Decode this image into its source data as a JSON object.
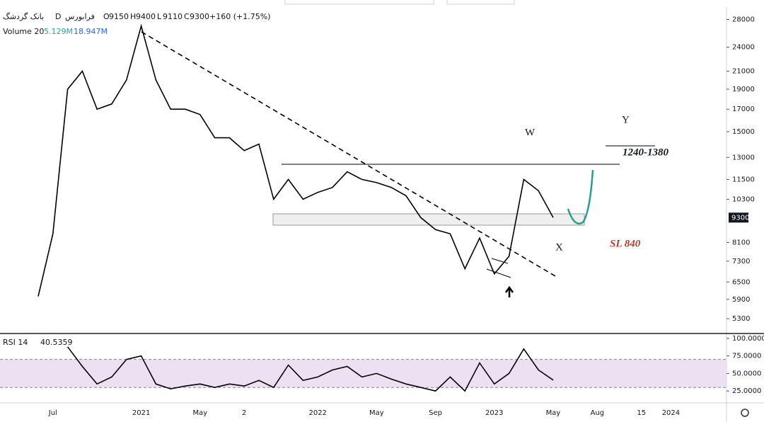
{
  "header": {
    "symbol": "بانک گردشگ",
    "interval": "D",
    "exchange": "فرابورس",
    "ohlc": [
      {
        "label": "O",
        "value": 9150
      },
      {
        "label": "H",
        "value": 9400
      },
      {
        "label": "L",
        "value": 9110
      },
      {
        "label": "C",
        "value": 9300
      }
    ],
    "change": "+160 (+1.75%)",
    "volume_title": "Volume 20",
    "volume_value": "5.129M",
    "volume_ma": "18.947M"
  },
  "chart_data": [
    {
      "type": "line",
      "log_scale": true,
      "color": "#000000",
      "categories": [
        null,
        "Jul",
        null,
        null,
        null,
        null,
        null,
        "2021",
        null,
        null,
        null,
        "May",
        null,
        null,
        "2",
        null,
        null,
        null,
        null,
        "2022",
        null,
        null,
        null,
        "May",
        null,
        null,
        null,
        "Sep",
        null,
        null,
        null,
        "2023",
        null,
        null,
        null,
        "May",
        null,
        null,
        "Aug",
        null,
        null,
        "15",
        null,
        "2024"
      ],
      "values": [
        6000,
        8500,
        19000,
        21000,
        17000,
        17500,
        20000,
        27000,
        20000,
        17000,
        17000,
        16500,
        14500,
        14500,
        13500,
        14000,
        10300,
        11500,
        10300,
        10700,
        11000,
        12000,
        11500,
        11300,
        11000,
        10500,
        9300,
        8700,
        8500,
        7000,
        8300,
        6800,
        7500,
        11500,
        10800,
        9300,
        null,
        null,
        null,
        null,
        null,
        null,
        null,
        null
      ],
      "ylim": [
        4900,
        30000
      ],
      "yticks": [
        28000,
        24000,
        21000,
        19000,
        17000,
        15000,
        13000,
        11500,
        10300,
        8100,
        7300,
        6500,
        5900,
        5300
      ],
      "last_price": 9300,
      "annotations": [
        "W",
        "Y",
        "X",
        "1240-1380",
        "SL 840"
      ]
    },
    {
      "type": "line",
      "title": "RSI 14",
      "color": "#000000",
      "band": [
        30,
        70
      ],
      "band_color": "#ece0f2",
      "values": [
        null,
        null,
        88,
        60,
        35,
        45,
        70,
        75,
        35,
        28,
        32,
        35,
        30,
        35,
        32,
        40,
        30,
        62,
        40,
        45,
        55,
        60,
        45,
        50,
        42,
        35,
        30,
        25,
        45,
        25,
        65,
        35,
        50,
        85,
        55,
        40.5359,
        null,
        null,
        null,
        null,
        null,
        null,
        null,
        null
      ],
      "ylim": [
        9,
        103
      ],
      "yticks": [
        {
          "value": 100,
          "label": "100.0000"
        },
        {
          "value": 75,
          "label": "75.0000"
        },
        {
          "value": 50,
          "label": "50.0000"
        },
        {
          "value": 25,
          "label": "25.0000"
        }
      ]
    }
  ]
}
